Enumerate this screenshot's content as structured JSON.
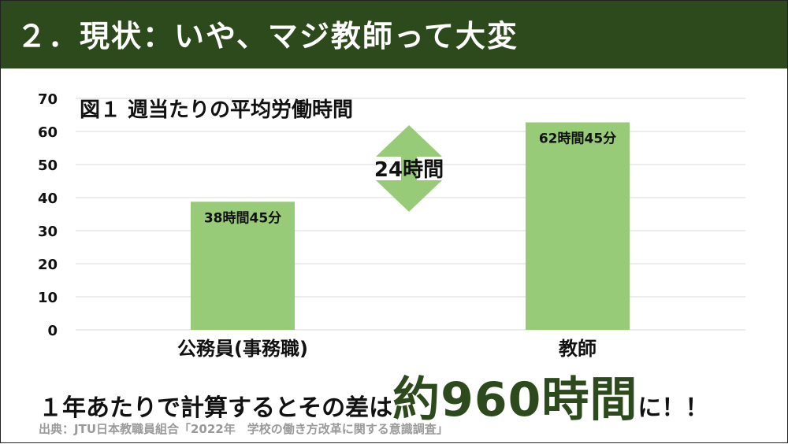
{
  "header": {
    "title": "２．現状：いや、マジ教師って大変"
  },
  "chart_data": {
    "type": "bar",
    "title": "図１ 週当たりの平均労働時間",
    "categories": [
      "公務員(事務職)",
      "教師"
    ],
    "values": [
      38.75,
      62.75
    ],
    "data_labels": [
      "38時間45分",
      "62時間45分"
    ],
    "ylim": [
      0,
      70
    ],
    "yticks": [
      "0",
      "10",
      "20",
      "30",
      "40",
      "50",
      "60",
      "70"
    ],
    "grid": true,
    "bar_color": "#97cb78",
    "difference_annotation": {
      "label": "24時間",
      "color": "#97cb78"
    }
  },
  "conclusion": {
    "prefix": "１年あたりで計算するとその差は",
    "highlight": "約960時間",
    "suffix": "に！！"
  },
  "source": "出典：JTU日本教職員組合「2022年　学校の働き方改革に関する意識調査」"
}
